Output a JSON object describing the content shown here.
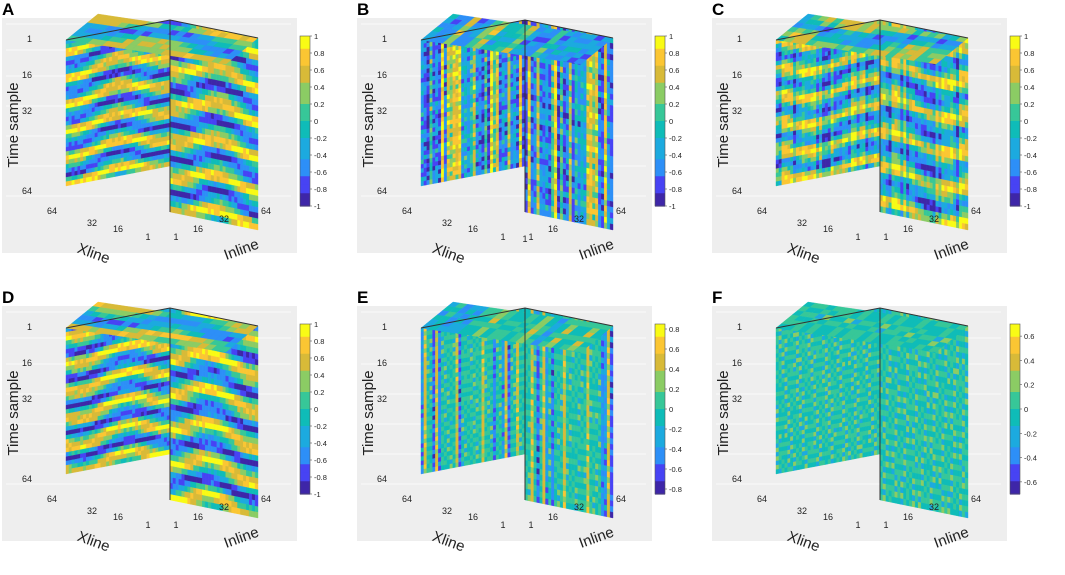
{
  "figure": {
    "axis_labels": {
      "z": "Time  sample",
      "x": "Xline",
      "y": "Inline"
    },
    "tick_labels": {
      "z": [
        "1",
        "16",
        "32",
        "64"
      ],
      "x": [
        "64",
        "32",
        "16",
        "1"
      ],
      "y": [
        "1",
        "16",
        "32",
        "64"
      ]
    }
  },
  "colors": {
    "colormap": [
      "#3e26a8",
      "#4743f4",
      "#2d8ff7",
      "#1caadf",
      "#0fbcb8",
      "#37c798",
      "#8bcc64",
      "#d8ba38",
      "#fbc633",
      "#f9fb15"
    ],
    "panel_bg": "#eeeeee",
    "cube_edge": "#333333"
  },
  "chart_data": [
    {
      "label": "A",
      "type": "heatmap",
      "pattern": "horizontal layers, strong",
      "colorbar": {
        "range": [
          -1,
          1
        ],
        "ticks": [
          "1",
          "0.8",
          "0.6",
          "0.4",
          "0.2",
          "0",
          "-0.2",
          "-0.4",
          "-0.6",
          "-0.8",
          "-1"
        ]
      }
    },
    {
      "label": "B",
      "type": "heatmap",
      "pattern": "vertical stripes",
      "tick_labels_x": [
        "64",
        "32",
        "16",
        "1"
      ],
      "tick_labels_y": [
        "1",
        "16",
        "32",
        "64"
      ],
      "extra_tick_label": "1",
      "colorbar": {
        "range": [
          -1,
          1
        ],
        "ticks": [
          "1",
          "0.8",
          "0.6",
          "0.4",
          "0.2",
          "0",
          "-0.2",
          "-0.4",
          "-0.6",
          "-0.8",
          "-1"
        ]
      }
    },
    {
      "label": "C",
      "type": "heatmap",
      "pattern": "horizontal layers with vertical stripes",
      "colorbar": {
        "range": [
          -1,
          1
        ],
        "ticks": [
          "1",
          "0.8",
          "0.6",
          "0.4",
          "0.2",
          "0",
          "-0.2",
          "-0.4",
          "-0.6",
          "-0.8",
          "-1"
        ]
      }
    },
    {
      "label": "D",
      "type": "heatmap",
      "pattern": "horizontal layers, strong",
      "colorbar": {
        "range": [
          -1,
          1
        ],
        "ticks": [
          "1",
          "0.8",
          "0.6",
          "0.4",
          "0.2",
          "0",
          "-0.2",
          "-0.4",
          "-0.6",
          "-0.8",
          "-1"
        ]
      }
    },
    {
      "label": "E",
      "type": "heatmap",
      "pattern": "sparse vertical stripes",
      "colorbar": {
        "range": [
          -0.85,
          0.85
        ],
        "ticks": [
          "0.8",
          "0.6",
          "0.4",
          "0.2",
          "0",
          "-0.2",
          "-0.4",
          "-0.6",
          "-0.8"
        ]
      }
    },
    {
      "label": "F",
      "type": "heatmap",
      "pattern": "sparse noise",
      "colorbar": {
        "range": [
          -0.7,
          0.7
        ],
        "ticks": [
          "0.6",
          "0.4",
          "0.2",
          "0",
          "-0.2",
          "-0.4",
          "-0.6"
        ]
      }
    }
  ]
}
